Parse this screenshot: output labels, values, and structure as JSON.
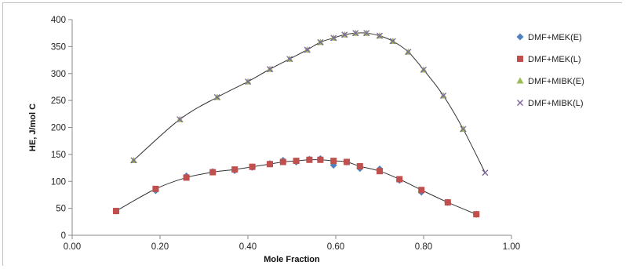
{
  "chart_data": {
    "type": "scatter",
    "title": "",
    "xlabel": "Mole Fraction",
    "ylabel": "HE, J/mol C",
    "xlim": [
      0,
      1
    ],
    "ylim": [
      0,
      400
    ],
    "x_ticks": [
      0,
      0.2,
      0.4,
      0.6,
      0.8,
      1.0
    ],
    "x_tick_labels": [
      "0.00",
      "0.20",
      "0.40",
      "0.60",
      "0.80",
      "1.00"
    ],
    "y_ticks": [
      0,
      50,
      100,
      150,
      200,
      250,
      300,
      350,
      400
    ],
    "y_tick_labels": [
      "0",
      "50",
      "100",
      "150",
      "200",
      "250",
      "300",
      "350",
      "400"
    ],
    "grid": false,
    "legend_position": "right",
    "series": [
      {
        "name": "DMF+MEK(E)",
        "marker": "diamond",
        "color": "#4f81bd",
        "x": [
          0.1,
          0.19,
          0.26,
          0.32,
          0.37,
          0.41,
          0.45,
          0.48,
          0.51,
          0.54,
          0.565,
          0.595,
          0.625,
          0.655,
          0.7,
          0.745,
          0.795,
          0.855,
          0.92
        ],
        "y": [
          45,
          83,
          110,
          118,
          120,
          126,
          133,
          139,
          136,
          141,
          142,
          130,
          136,
          124,
          123,
          102,
          80,
          61,
          39
        ]
      },
      {
        "name": "DMF+MEK(L)",
        "marker": "square",
        "color": "#c0504d",
        "x": [
          0.1,
          0.19,
          0.26,
          0.32,
          0.37,
          0.41,
          0.45,
          0.48,
          0.51,
          0.54,
          0.565,
          0.595,
          0.625,
          0.655,
          0.7,
          0.745,
          0.795,
          0.855,
          0.92
        ],
        "y": [
          45,
          86,
          107,
          117,
          122,
          127,
          132,
          136,
          138,
          140,
          140,
          138,
          136,
          128,
          119,
          104,
          84,
          61,
          39
        ]
      },
      {
        "name": "DMF+MIBK(E)",
        "marker": "triangle",
        "color": "#9bbb59",
        "x": [
          0.14,
          0.245,
          0.33,
          0.4,
          0.45,
          0.495,
          0.535,
          0.565,
          0.595,
          0.62,
          0.645,
          0.67,
          0.7,
          0.73,
          0.765,
          0.8,
          0.845,
          0.89
        ],
        "y": [
          139,
          215,
          256,
          285,
          308,
          327,
          344,
          358,
          366,
          372,
          375,
          375,
          370,
          360,
          340,
          307,
          259,
          197
        ]
      },
      {
        "name": "DMF+MIBK(L)",
        "marker": "x",
        "color": "#8064a2",
        "x": [
          0.14,
          0.245,
          0.33,
          0.4,
          0.45,
          0.495,
          0.535,
          0.565,
          0.595,
          0.62,
          0.645,
          0.67,
          0.7,
          0.73,
          0.765,
          0.8,
          0.845,
          0.89,
          0.94
        ],
        "y": [
          139,
          215,
          256,
          285,
          308,
          327,
          344,
          358,
          366,
          372,
          375,
          375,
          370,
          360,
          340,
          307,
          259,
          197,
          116
        ]
      }
    ],
    "trendlines": [
      {
        "for": "DMF+MEK",
        "color": "#333333",
        "x": [
          0.1,
          0.19,
          0.26,
          0.32,
          0.37,
          0.41,
          0.45,
          0.48,
          0.51,
          0.54,
          0.565,
          0.595,
          0.625,
          0.655,
          0.7,
          0.745,
          0.795,
          0.855,
          0.92
        ],
        "y": [
          45,
          86,
          107,
          117,
          122,
          127,
          132,
          136,
          138,
          140,
          140,
          138,
          136,
          128,
          119,
          104,
          84,
          61,
          39
        ]
      },
      {
        "for": "DMF+MIBK",
        "color": "#333333",
        "x": [
          0.14,
          0.245,
          0.33,
          0.4,
          0.45,
          0.495,
          0.535,
          0.565,
          0.595,
          0.62,
          0.645,
          0.67,
          0.7,
          0.73,
          0.765,
          0.8,
          0.845,
          0.89,
          0.94
        ],
        "y": [
          139,
          215,
          256,
          285,
          308,
          327,
          344,
          358,
          366,
          372,
          375,
          375,
          370,
          360,
          340,
          307,
          259,
          197,
          116
        ]
      }
    ]
  }
}
